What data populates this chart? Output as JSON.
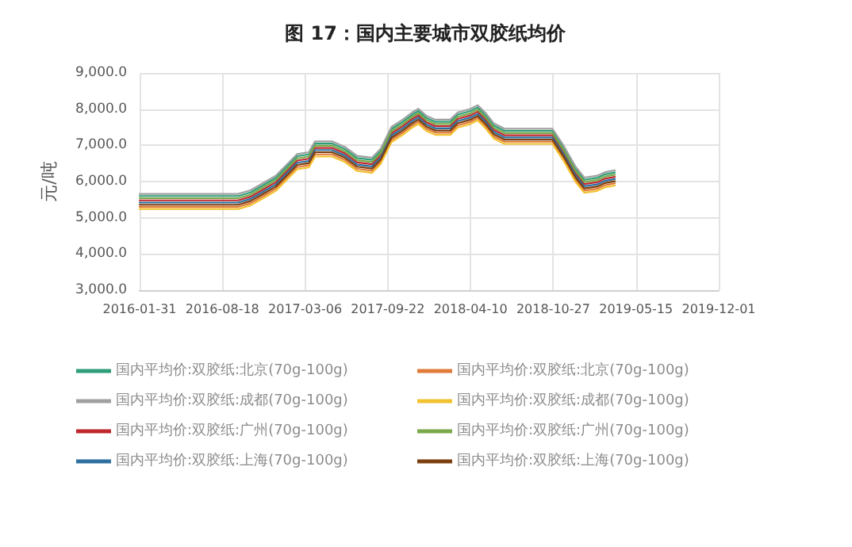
{
  "chart_data": {
    "type": "line",
    "title": "图 17：国内主要城市双胶纸均价",
    "ylabel": "元/吨",
    "x": [
      "2016-01-31",
      "2016-09-25",
      "2016-10-25",
      "2016-11-25",
      "2016-12-25",
      "2017-01-20",
      "2017-02-15",
      "2017-03-15",
      "2017-03-30",
      "2017-05-10",
      "2017-06-10",
      "2017-07-10",
      "2017-08-15",
      "2017-09-05",
      "2017-10-01",
      "2017-10-28",
      "2017-11-20",
      "2017-12-05",
      "2017-12-25",
      "2018-01-15",
      "2018-02-20",
      "2018-03-10",
      "2018-04-10",
      "2018-04-27",
      "2018-05-15",
      "2018-06-05",
      "2018-07-01",
      "2018-10-25",
      "2018-11-20",
      "2018-12-20",
      "2019-01-10",
      "2019-02-10",
      "2019-03-01",
      "2019-03-25"
    ],
    "series": [
      {
        "name": "国内平均价:双胶纸:北京(70g-100g)",
        "color": "#2e9e7a",
        "values": [
          5600,
          5600,
          5700,
          5900,
          6100,
          6400,
          6700,
          6750,
          7050,
          7050,
          6900,
          6650,
          6600,
          6850,
          7450,
          7650,
          7850,
          7950,
          7750,
          7650,
          7650,
          7850,
          7950,
          8050,
          7850,
          7550,
          7400,
          7400,
          6950,
          6350,
          6050,
          6100,
          6200,
          6250
        ]
      },
      {
        "name": "国内平均价:双胶纸:北京(70g-100g)",
        "color": "#e07b39",
        "values": [
          5300,
          5300,
          5400,
          5600,
          5800,
          6100,
          6400,
          6450,
          6750,
          6750,
          6600,
          6350,
          6300,
          6550,
          7150,
          7350,
          7550,
          7650,
          7450,
          7350,
          7350,
          7550,
          7650,
          7750,
          7550,
          7250,
          7100,
          7100,
          6650,
          6050,
          5750,
          5800,
          5900,
          5950
        ]
      },
      {
        "name": "国内平均价:双胶纸:成都(70g-100g)",
        "color": "#a0a0a0",
        "values": [
          5660,
          5660,
          5760,
          5960,
          6160,
          6460,
          6760,
          6810,
          7110,
          7110,
          6960,
          6710,
          6660,
          6910,
          7510,
          7710,
          7910,
          8010,
          7810,
          7710,
          7710,
          7910,
          8010,
          8110,
          7910,
          7610,
          7460,
          7460,
          7010,
          6410,
          6110,
          6160,
          6260,
          6310
        ]
      },
      {
        "name": "国内平均价:双胶纸:成都(70g-100g)",
        "color": "#f2c230",
        "values": [
          5240,
          5240,
          5340,
          5540,
          5740,
          6040,
          6340,
          6390,
          6690,
          6690,
          6540,
          6290,
          6240,
          6490,
          7090,
          7290,
          7490,
          7590,
          7390,
          7290,
          7290,
          7490,
          7590,
          7690,
          7490,
          7190,
          7040,
          7040,
          6590,
          5990,
          5690,
          5740,
          5840,
          5890
        ]
      },
      {
        "name": "国内平均价:双胶纸:广州(70g-100g)",
        "color": "#c0272d",
        "values": [
          5480,
          5480,
          5580,
          5780,
          5980,
          6280,
          6580,
          6630,
          6930,
          6930,
          6780,
          6530,
          6480,
          6730,
          7330,
          7530,
          7730,
          7830,
          7630,
          7530,
          7530,
          7730,
          7830,
          7930,
          7730,
          7430,
          7280,
          7280,
          6830,
          6230,
          5930,
          5980,
          6080,
          6130
        ]
      },
      {
        "name": "国内平均价:双胶纸:广州(70g-100g)",
        "color": "#7aa84a",
        "values": [
          5540,
          5540,
          5640,
          5840,
          6040,
          6340,
          6640,
          6690,
          6990,
          6990,
          6840,
          6590,
          6540,
          6790,
          7390,
          7590,
          7790,
          7890,
          7690,
          7590,
          7590,
          7790,
          7890,
          7990,
          7790,
          7490,
          7340,
          7340,
          6890,
          6290,
          5990,
          6040,
          6140,
          6190
        ]
      },
      {
        "name": "国内平均价:双胶纸:上海(70g-100g)",
        "color": "#2e6fa0",
        "values": [
          5420,
          5420,
          5520,
          5720,
          5920,
          6220,
          6520,
          6570,
          6870,
          6870,
          6720,
          6470,
          6420,
          6670,
          7270,
          7470,
          7670,
          7770,
          7570,
          7470,
          7470,
          7670,
          7770,
          7870,
          7670,
          7370,
          7220,
          7220,
          6770,
          6170,
          5870,
          5920,
          6020,
          6070
        ]
      },
      {
        "name": "国内平均价:双胶纸:上海(70g-100g)",
        "color": "#7b3f10",
        "values": [
          5360,
          5360,
          5460,
          5660,
          5860,
          6160,
          6460,
          6510,
          6810,
          6810,
          6660,
          6410,
          6360,
          6610,
          7210,
          7410,
          7610,
          7710,
          7510,
          7410,
          7410,
          7610,
          7710,
          7810,
          7610,
          7310,
          7160,
          7160,
          6710,
          6110,
          5810,
          5860,
          5960,
          6010
        ]
      }
    ],
    "xlim": [
      "2016-01-31",
      "2019-12-01"
    ],
    "xticks": [
      "2016-01-31",
      "2016-08-18",
      "2017-03-06",
      "2017-09-22",
      "2018-04-10",
      "2018-10-27",
      "2019-05-15",
      "2019-12-01"
    ],
    "ylim": [
      3000,
      9000
    ],
    "yticks": [
      {
        "value": 3000,
        "label": "3,000.0"
      },
      {
        "value": 4000,
        "label": "4,000.0"
      },
      {
        "value": 5000,
        "label": "5,000.0"
      },
      {
        "value": 6000,
        "label": "6,000.0"
      },
      {
        "value": 7000,
        "label": "7,000.0"
      },
      {
        "value": 8000,
        "label": "8,000.0"
      },
      {
        "value": 9000,
        "label": "9,000.0"
      }
    ],
    "grid": true,
    "legend": "bottom",
    "marker": "none",
    "line_style": "solid"
  }
}
